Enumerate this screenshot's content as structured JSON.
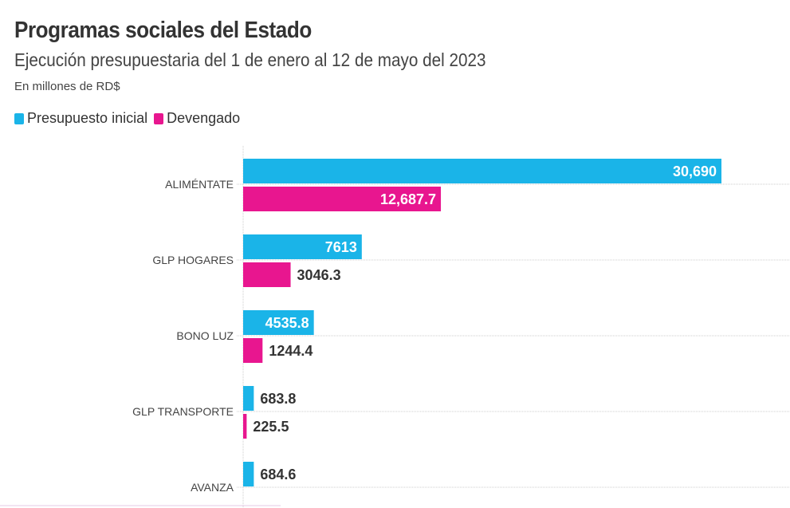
{
  "chart_data": {
    "type": "bar",
    "orientation": "horizontal",
    "title": "Programas sociales del Estado",
    "subtitle": "Ejecución presupuestaria del 1 de enero al 12 de mayo del 2023",
    "note": "En millones de RD$",
    "legend_placement": "top-left",
    "categories": [
      "ALIMÉNTATE",
      "GLP HOGARES",
      "BONO LUZ",
      "GLP   TRANSPORTE",
      "AVANZA"
    ],
    "series": [
      {
        "name": "Presupuesto inicial",
        "color": "#1ab4e8",
        "values": [
          30690,
          7613,
          4535.8,
          683.8,
          684.6
        ],
        "labels": [
          "30,690",
          "7613",
          "4535.8",
          "683.8",
          "684.6"
        ]
      },
      {
        "name": "Devengado",
        "color": "#e8168f",
        "values": [
          12687.7,
          3046.3,
          1244.4,
          225.5,
          null
        ],
        "labels": [
          "12,687.7",
          "3046.3",
          "1244.4",
          "225.5",
          null
        ]
      }
    ],
    "xlim": [
      0,
      30690
    ]
  }
}
